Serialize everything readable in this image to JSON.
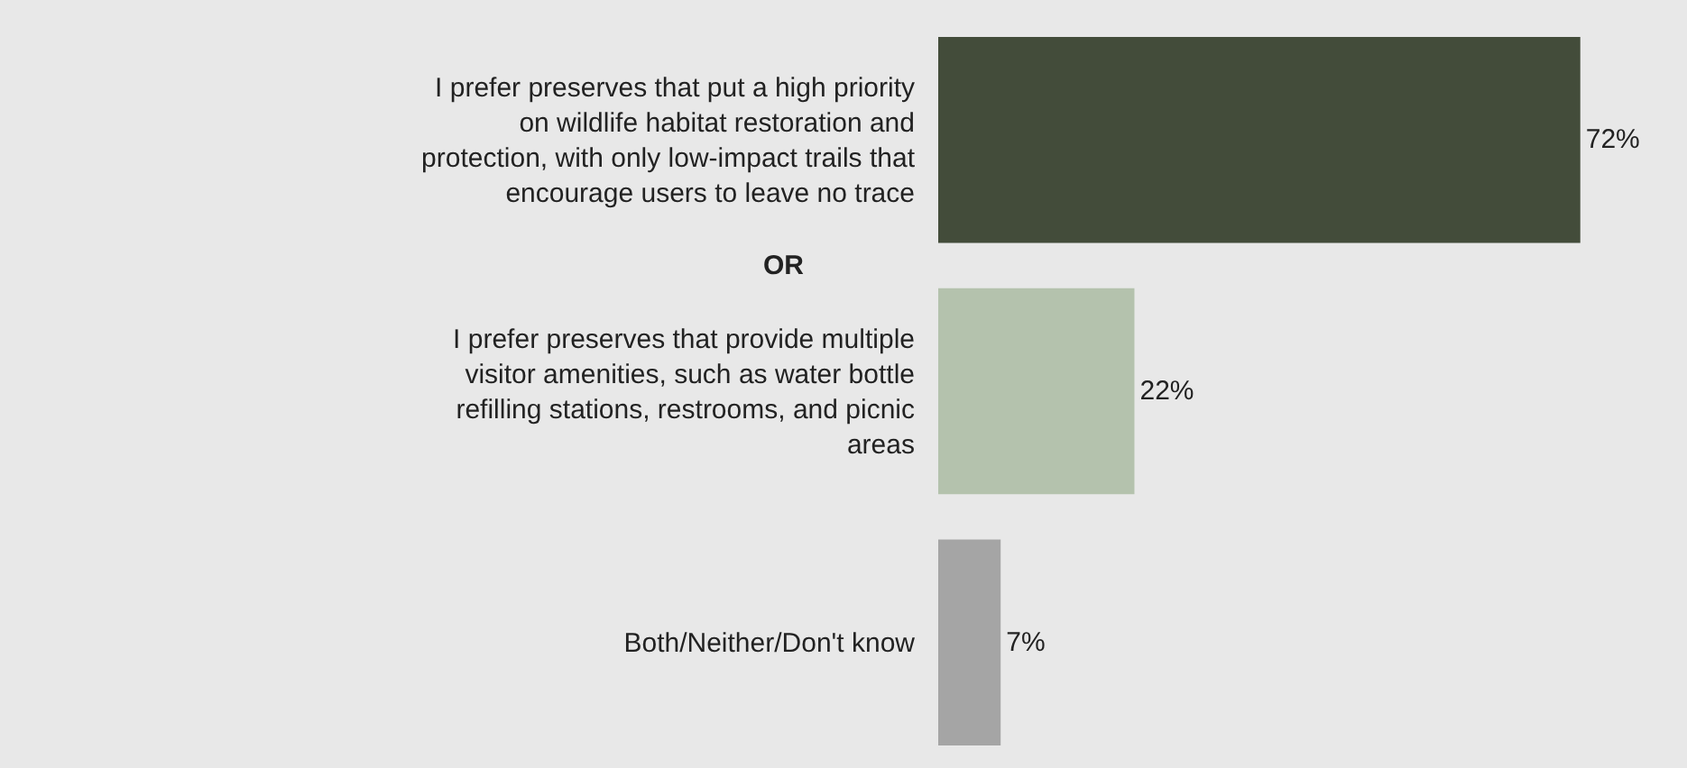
{
  "chart_data": {
    "type": "bar",
    "orientation": "horizontal",
    "categories": [
      "I prefer preserves that put a high priority on wildlife habitat restoration and protection, with only low-impact trails that encourage users to leave no trace",
      "I prefer preserves that provide multiple visitor amenities, such as water bottle refilling stations, restrooms, and picnic areas",
      "Both/Neither/Don't know"
    ],
    "values": [
      72,
      22,
      7
    ],
    "colors": [
      "#434c3a",
      "#b4c2ad",
      "#a5a5a5"
    ],
    "value_labels": [
      "72%",
      "22%",
      "7%"
    ],
    "annotations": [
      "OR"
    ],
    "legend": false,
    "tick_labels": "y"
  }
}
